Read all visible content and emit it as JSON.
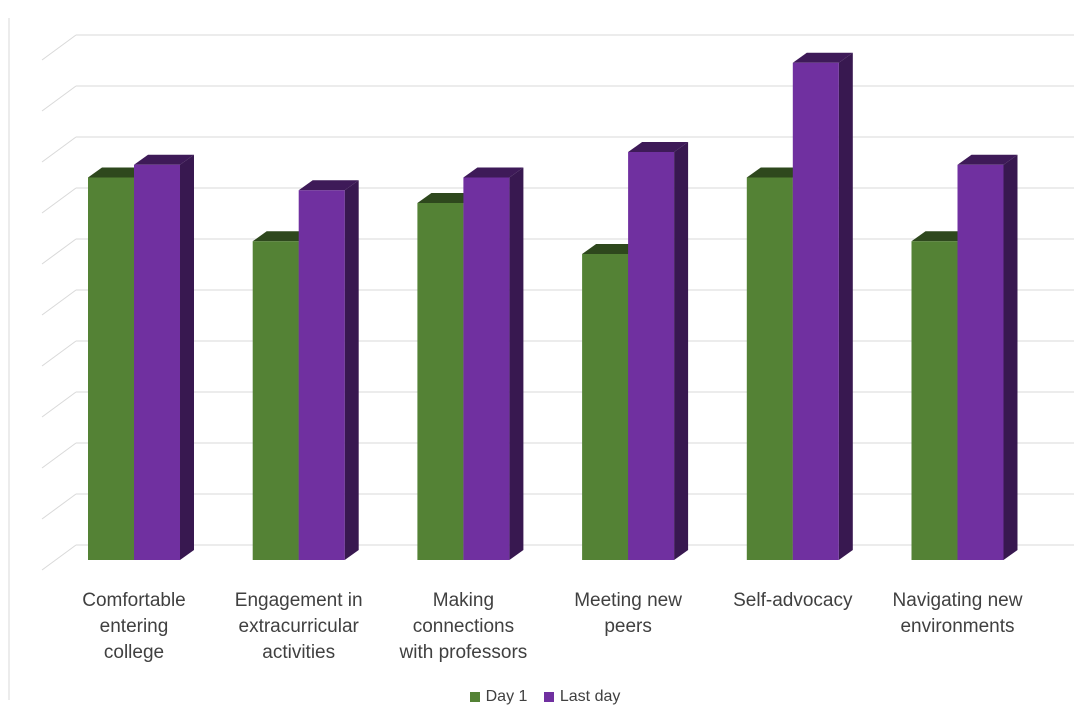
{
  "chart_data": {
    "type": "bar",
    "title": "",
    "xlabel": "",
    "ylabel": "",
    "ylim": [
      0,
      10
    ],
    "grid": true,
    "legend_position": "bottom",
    "categories": [
      "Comfortable\nentering\ncollege",
      "Engagement in\nextracurricular\nactivities",
      "Making\nconnections\nwith professors",
      "Meeting new\npeers",
      "Self-advocacy",
      "Navigating new\nenvironments"
    ],
    "series": [
      {
        "name": "Day 1",
        "color": "#548235",
        "values": [
          7.5,
          6.25,
          7.0,
          6.0,
          7.5,
          6.25
        ]
      },
      {
        "name": "Last day",
        "color": "#7030A0",
        "values": [
          7.75,
          7.25,
          7.5,
          8.0,
          9.75,
          7.75
        ]
      }
    ]
  }
}
